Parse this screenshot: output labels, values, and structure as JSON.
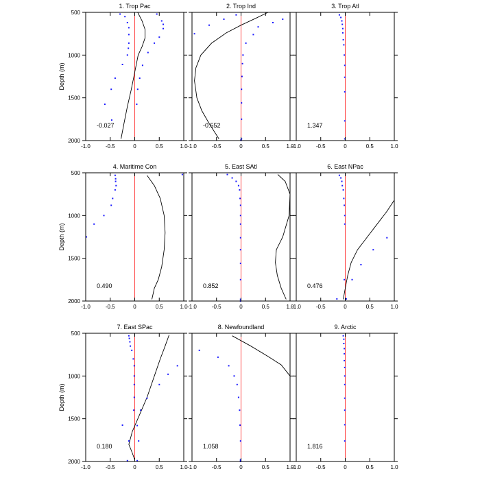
{
  "figure": {
    "ylabel": "Depth (m)"
  },
  "chart_data": [
    {
      "type": "line",
      "title": "1. Trop Pac",
      "value_label": "-0.027",
      "xlim": [
        -1,
        1
      ],
      "ylim": [
        2000,
        500
      ],
      "xticks": [
        "-1.0",
        "-0.5",
        "0",
        "0.5",
        "1.0"
      ],
      "yticks": [
        "500",
        "1000",
        "1500",
        "2000"
      ],
      "reference_line": {
        "x": 0,
        "color": "#ff4444"
      },
      "curve": {
        "x": [
          0.06,
          0.15,
          0.21,
          0.21,
          0.15,
          0.07,
          0.0,
          -0.07,
          -0.15,
          -0.22,
          -0.28
        ],
        "y": [
          500,
          600,
          700,
          800,
          900,
          1000,
          1200,
          1400,
          1600,
          1800,
          1980
        ]
      },
      "points": {
        "x": [
          -0.3,
          0.45,
          -0.2,
          0.55,
          -0.15,
          0.58,
          -0.12,
          0.58,
          -0.12,
          0.5,
          -0.12,
          0.4,
          -0.13,
          0.27,
          -0.15,
          0.16,
          -0.25,
          0.1,
          -0.4,
          0.06,
          -0.48,
          0.04,
          -0.61,
          -0.47
        ],
        "y": [
          520,
          520,
          550,
          600,
          620,
          640,
          680,
          690,
          760,
          790,
          860,
          860,
          920,
          970,
          1000,
          1120,
          1110,
          1270,
          1270,
          1400,
          1400,
          1575,
          1575,
          1760
        ],
        "color": "#1a1aff"
      }
    },
    {
      "type": "line",
      "title": "2. Trop Ind",
      "value_label": "-0.552",
      "xlim": [
        -1,
        1
      ],
      "ylim": [
        2000,
        500
      ],
      "xticks": [
        "-1.0",
        "-0.5",
        "0",
        "0.5",
        "1.0"
      ],
      "yticks": [
        "500",
        "1000",
        "1500",
        "2000"
      ],
      "reference_line": {
        "x": 0,
        "color": "#ff4444"
      },
      "curve": {
        "x": [
          0.55,
          0.3,
          0.0,
          -0.3,
          -0.6,
          -0.82,
          -0.92,
          -0.95,
          -0.9,
          -0.8,
          -0.65,
          -0.45
        ],
        "y": [
          500,
          570,
          650,
          740,
          860,
          1000,
          1150,
          1300,
          1500,
          1650,
          1800,
          1980
        ]
      },
      "points": {
        "x": [
          -0.1,
          0.85,
          -0.35,
          0.65,
          -0.65,
          0.35,
          -0.95,
          0.25,
          0.1,
          0.04,
          0.03,
          0.02,
          0.01,
          0.01,
          0.01,
          0.01,
          0.0,
          0.0
        ],
        "y": [
          530,
          580,
          580,
          620,
          650,
          670,
          750,
          760,
          860,
          1000,
          1100,
          1250,
          1400,
          1560,
          1750,
          1980,
          1990,
          2000
        ],
        "color": "#1a1aff"
      }
    },
    {
      "type": "line",
      "title": "3. Trop Atl",
      "value_label": "1.347",
      "xlim": [
        -1,
        1
      ],
      "ylim": [
        2000,
        500
      ],
      "xticks": [
        "-1.0",
        "-0.5",
        "0",
        "0.5",
        "1.0"
      ],
      "yticks": [
        "500",
        "1000",
        "1500",
        "2000"
      ],
      "reference_line": {
        "x": 0,
        "color": "#ff4444"
      },
      "curve": {
        "x": [],
        "y": []
      },
      "points": {
        "x": [
          -0.12,
          -0.09,
          -0.07,
          -0.06,
          -0.05,
          -0.05,
          -0.04,
          -0.03,
          -0.02,
          -0.01,
          -0.01,
          -0.01,
          -0.01,
          -0.01
        ],
        "y": [
          530,
          560,
          600,
          640,
          690,
          740,
          820,
          880,
          1000,
          1120,
          1260,
          1430,
          1770,
          1980
        ],
        "color": "#1a1aff"
      }
    },
    {
      "type": "line",
      "title": "4. Maritime Con",
      "value_label": "0.490",
      "xlim": [
        -1,
        1
      ],
      "ylim": [
        2000,
        500
      ],
      "xticks": [
        "-1.0",
        "-0.5",
        "0",
        "0.5",
        "1.0"
      ],
      "yticks": [
        "500",
        "1000",
        "1500",
        "2000"
      ],
      "reference_line": {
        "x": 0,
        "color": "#ff4444"
      },
      "curve": {
        "x": [
          0.25,
          0.4,
          0.52,
          0.6,
          0.62,
          0.6,
          0.55,
          0.48,
          0.4,
          0.35
        ],
        "y": [
          530,
          650,
          800,
          1000,
          1200,
          1400,
          1600,
          1750,
          1850,
          1980
        ]
      },
      "points": {
        "x": [
          -0.4,
          -0.39,
          -0.39,
          -0.38,
          -0.4,
          -0.45,
          -0.48,
          -0.63,
          -0.83,
          -0.99,
          0.97
        ],
        "y": [
          530,
          570,
          600,
          650,
          700,
          800,
          880,
          1000,
          1100,
          1250,
          520
        ],
        "color": "#1a1aff"
      }
    },
    {
      "type": "line",
      "title": "5. East SAtl",
      "value_label": "0.852",
      "xlim": [
        -1,
        1
      ],
      "ylim": [
        2000,
        500
      ],
      "xticks": [
        "-1.0",
        "-0.5",
        "0",
        "0.5",
        "1.0"
      ],
      "yticks": [
        "500",
        "1000",
        "1500",
        "2000"
      ],
      "reference_line": {
        "x": 0,
        "color": "#ff4444"
      },
      "curve": {
        "x": [
          0.75,
          0.9,
          1.0,
          0.98,
          0.85,
          0.72,
          0.7,
          0.74,
          0.82,
          0.92
        ],
        "y": [
          520,
          600,
          750,
          1000,
          1250,
          1400,
          1550,
          1700,
          1850,
          1980
        ]
      },
      "points": {
        "x": [
          -0.28,
          -0.18,
          -0.1,
          -0.05,
          -0.03,
          -0.02,
          -0.01,
          -0.01,
          -0.01,
          -0.01,
          -0.01,
          -0.01,
          -0.01,
          -0.01,
          -0.01
        ],
        "y": [
          520,
          560,
          600,
          650,
          700,
          800,
          880,
          1000,
          1100,
          1260,
          1400,
          1560,
          1750,
          1980,
          2000
        ],
        "color": "#1a1aff"
      }
    },
    {
      "type": "line",
      "title": "6. East NPac",
      "value_label": "0.476",
      "xlim": [
        -1,
        1
      ],
      "ylim": [
        2000,
        500
      ],
      "xticks": [
        "-1.0",
        "-0.5",
        "0",
        "0.5",
        "1.0"
      ],
      "yticks": [
        "500",
        "1000",
        "1500",
        "2000"
      ],
      "reference_line": {
        "x": 0,
        "color": "#ff4444"
      },
      "curve": {
        "x": [
          1.0,
          0.85,
          0.65,
          0.45,
          0.25,
          0.12,
          0.05,
          0.0,
          -0.04
        ],
        "y": [
          820,
          950,
          1100,
          1250,
          1400,
          1550,
          1700,
          1850,
          1980
        ]
      },
      "points": {
        "x": [
          -0.12,
          -0.09,
          -0.07,
          -0.06,
          -0.04,
          -0.03,
          -0.02,
          -0.01,
          -0.01,
          0.85,
          0.57,
          0.32,
          0.14,
          -0.02,
          -0.17,
          0.02
        ],
        "y": [
          530,
          560,
          600,
          650,
          700,
          800,
          880,
          1000,
          1100,
          1260,
          1400,
          1575,
          1750,
          1750,
          1975,
          1975
        ],
        "color": "#1a1aff"
      }
    },
    {
      "type": "line",
      "title": "7. East SPac",
      "value_label": "0.180",
      "xlim": [
        -1,
        1
      ],
      "ylim": [
        2000,
        500
      ],
      "xticks": [
        "-1.0",
        "-0.5",
        "0",
        "0.5",
        "1.0"
      ],
      "yticks": [
        "500",
        "1000",
        "1500",
        "2000"
      ],
      "reference_line": {
        "x": 0,
        "color": "#ff4444"
      },
      "curve": {
        "x": [
          0.7,
          0.62,
          0.52,
          0.4,
          0.25,
          0.1,
          -0.05,
          -0.12,
          -0.05,
          0.0
        ],
        "y": [
          520,
          650,
          800,
          1000,
          1250,
          1450,
          1650,
          1800,
          1900,
          1980
        ]
      },
      "points": {
        "x": [
          -0.12,
          -0.11,
          -0.1,
          -0.09,
          -0.06,
          -0.03,
          -0.01,
          -0.01,
          -0.01,
          -0.01,
          -0.02,
          0.05,
          -0.25,
          0.08,
          0.12,
          0.25,
          0.5,
          0.68,
          0.87,
          -0.15,
          0.05,
          -0.12
        ],
        "y": [
          530,
          560,
          600,
          650,
          700,
          800,
          880,
          1000,
          1100,
          1250,
          1400,
          1580,
          1575,
          1760,
          1400,
          1260,
          1100,
          980,
          880,
          1990,
          1990,
          1760
        ],
        "color": "#1a1aff"
      }
    },
    {
      "type": "line",
      "title": "8. Newfoundland",
      "value_label": "1.058",
      "xlim": [
        -1,
        1
      ],
      "ylim": [
        2000,
        500
      ],
      "xticks": [
        "-1.0",
        "-0.5",
        "0",
        "0.5",
        "1.0"
      ],
      "yticks": [
        "500",
        "1000",
        "1500",
        "2000"
      ],
      "reference_line": {
        "x": 0,
        "color": "#ff4444"
      },
      "curve": {
        "x": [
          -0.18,
          0.2,
          0.55,
          0.82,
          1.0
        ],
        "y": [
          530,
          650,
          770,
          870,
          1000
        ]
      },
      "points": {
        "x": [
          -0.85,
          -0.47,
          -0.25,
          -0.14,
          -0.08,
          -0.05,
          -0.03,
          -0.02,
          -0.01,
          -0.01,
          -0.01,
          -0.01
        ],
        "y": [
          700,
          780,
          880,
          1000,
          1100,
          1250,
          1400,
          1575,
          1760,
          1980,
          1990,
          2000
        ],
        "color": "#1a1aff"
      }
    },
    {
      "type": "line",
      "title": "9. Arctic",
      "value_label": "1.816",
      "xlim": [
        -1,
        1
      ],
      "ylim": [
        2000,
        500
      ],
      "xticks": [
        "-1.0",
        "-0.5",
        "0",
        "0.5",
        "1.0"
      ],
      "yticks": [
        "500",
        "1000",
        "1500",
        "2000"
      ],
      "reference_line": {
        "x": 0,
        "color": "#ff4444"
      },
      "curve": {
        "x": [],
        "y": []
      },
      "points": {
        "x": [
          -0.04,
          -0.03,
          -0.03,
          -0.02,
          -0.02,
          -0.02,
          -0.01,
          -0.01,
          -0.01,
          -0.01,
          -0.01,
          -0.01,
          -0.01
        ],
        "y": [
          530,
          570,
          620,
          680,
          740,
          820,
          900,
          1000,
          1100,
          1260,
          1400,
          1570,
          1760
        ],
        "color": "#1a1aff"
      }
    }
  ]
}
